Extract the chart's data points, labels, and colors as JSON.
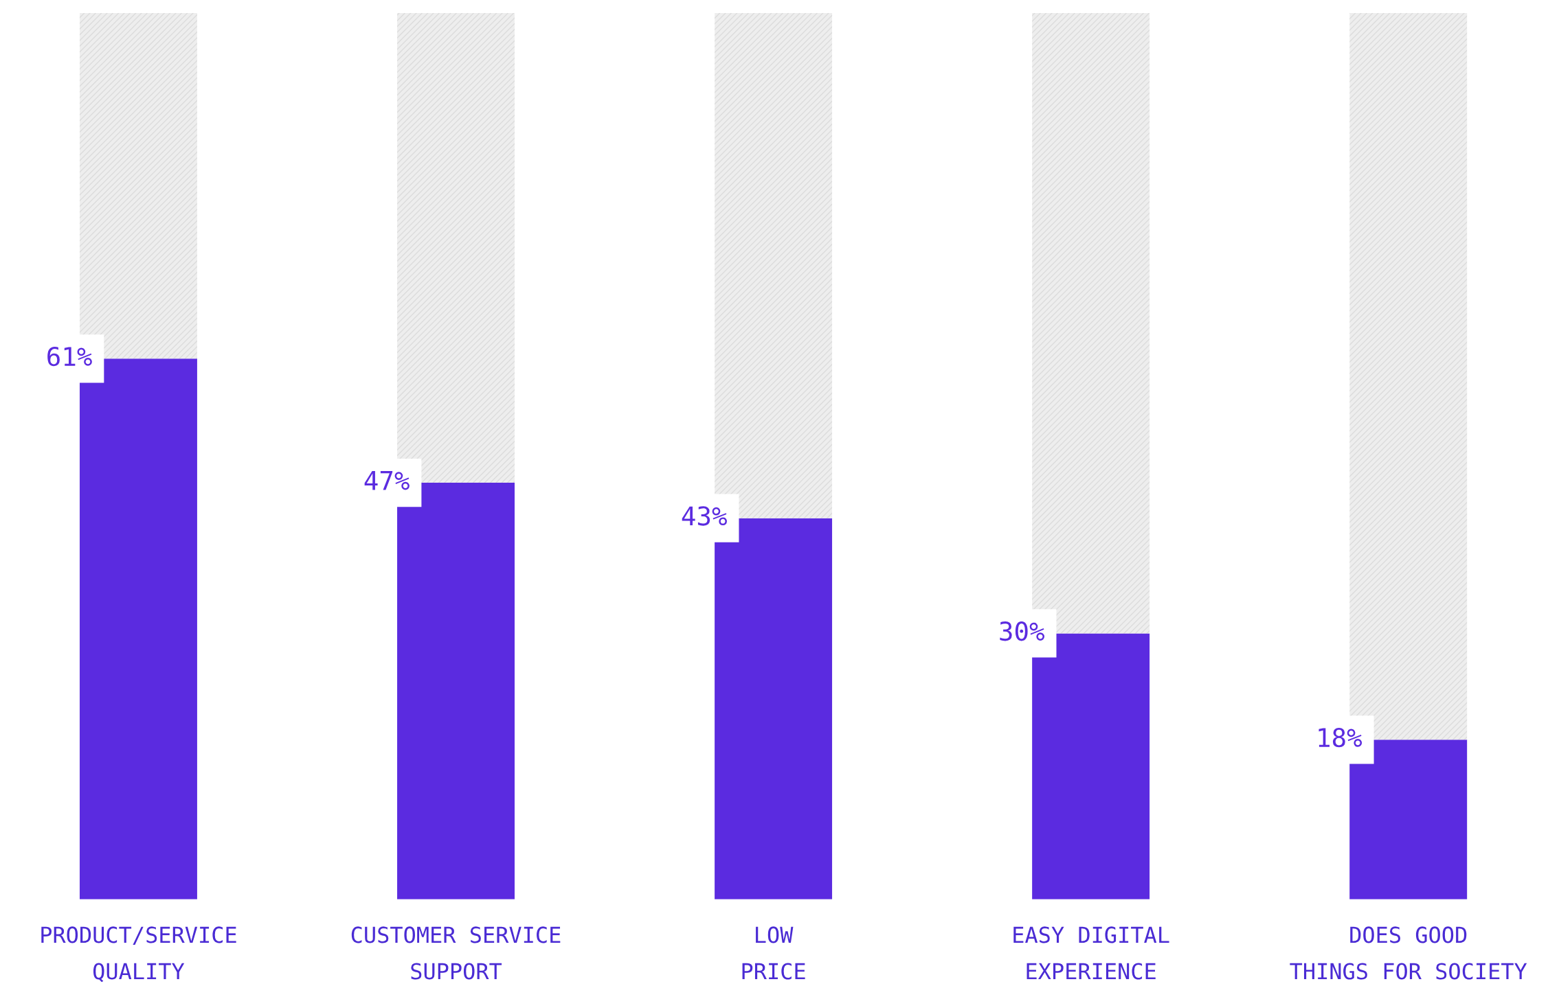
{
  "chart_data": {
    "type": "bar",
    "stacked": true,
    "tick_labels": "x",
    "categories": [
      "PRODUCT/SERVICE\nQUALITY",
      "CUSTOMER SERVICE\nSUPPORT",
      "LOW\nPRICE",
      "EASY DIGITAL\nEXPERIENCE",
      "DOES GOOD\nTHINGS FOR SOCIETY"
    ],
    "series": [
      {
        "color": "#5b2be0",
        "values": [
          61,
          47,
          43,
          30,
          18
        ],
        "value_labels": [
          "61%",
          "47%",
          "43%",
          "30%",
          "18%"
        ]
      },
      {
        "color": "#eeeeee",
        "values": [
          39,
          53,
          57,
          70,
          82
        ]
      }
    ],
    "ylim": [
      0,
      100
    ]
  }
}
